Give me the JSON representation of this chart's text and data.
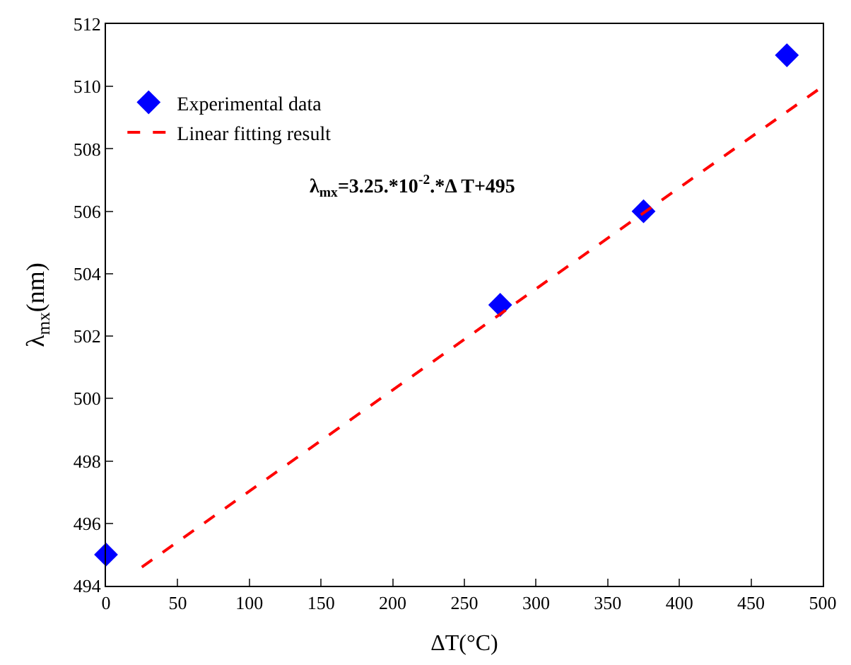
{
  "chart_data": {
    "type": "scatter",
    "xlabel": "ΔT(°C)",
    "ylabel": "λ$_{mx}$(nm)",
    "annotations": [
      "λ$_{mx}$=3.25.*10$^{-2}$.*Δ T+495"
    ],
    "x": [
      0,
      275,
      375,
      475
    ],
    "series": [
      {
        "name": "Experimental data",
        "color": "#0000ff",
        "marker": "diamond",
        "values": [
          495,
          503,
          506,
          511
        ]
      },
      {
        "name": "Linear fitting result",
        "color": "#ff0000",
        "type": "line",
        "line_style": "dashed",
        "marker": "none",
        "x": [
          25,
          500
        ],
        "values": [
          494.6,
          510
        ]
      }
    ],
    "xlim": [
      0,
      500
    ],
    "xticks": [
      0,
      50,
      100,
      150,
      200,
      250,
      300,
      350,
      400,
      450,
      500
    ],
    "ylim": [
      494,
      512
    ],
    "yticks": [
      494,
      496,
      498,
      500,
      502,
      504,
      506,
      508,
      510,
      512
    ],
    "legend": "top left"
  }
}
